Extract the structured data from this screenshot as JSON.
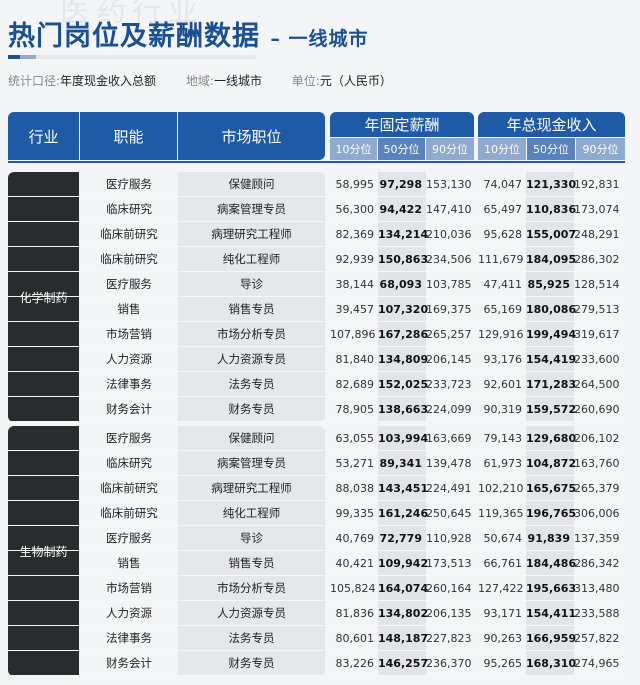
{
  "watermark": "医药行业",
  "title": "热门岗位及薪酬数据",
  "subtitle": "– 一线城市",
  "meta": {
    "scope_label": "统计口径:",
    "scope": "年度现金收入总额",
    "region_label": "地域:",
    "region": "一线城市",
    "unit_label": "单位:",
    "unit": "元（人民币）"
  },
  "headers": {
    "industry": "行业",
    "function": "职能",
    "position": "市场职位",
    "fixed": "年固定薪酬",
    "total": "年总现金收入",
    "p10": "10分位",
    "p50": "50分位",
    "p90": "90分位"
  },
  "colors": {
    "header": "#1f5aa6",
    "industry_cell": "#2a2b2d",
    "title": "#1b4f93"
  },
  "groups": [
    {
      "industry": "化学制药",
      "rows": [
        [
          "医疗服务",
          "保健顾问",
          "58,995",
          "97,298",
          "153,130",
          "74,047",
          "121,330",
          "192,831"
        ],
        [
          "临床研究",
          "病案管理专员",
          "56,300",
          "94,422",
          "147,410",
          "65,497",
          "110,836",
          "173,074"
        ],
        [
          "临床前研究",
          "病理研究工程师",
          "82,369",
          "134,214",
          "210,036",
          "95,628",
          "155,007",
          "248,291"
        ],
        [
          "临床前研究",
          "纯化工程师",
          "92,939",
          "150,863",
          "234,506",
          "111,679",
          "184,095",
          "286,302"
        ],
        [
          "医疗服务",
          "导诊",
          "38,144",
          "68,093",
          "103,785",
          "47,411",
          "85,925",
          "128,514"
        ],
        [
          "销售",
          "销售专员",
          "39,457",
          "107,320",
          "169,375",
          "65,169",
          "180,086",
          "279,513"
        ],
        [
          "市场营销",
          "市场分析专员",
          "107,896",
          "167,286",
          "265,257",
          "129,916",
          "199,494",
          "319,617"
        ],
        [
          "人力资源",
          "人力资源专员",
          "81,840",
          "134,809",
          "206,145",
          "93,176",
          "154,419",
          "233,600"
        ],
        [
          "法律事务",
          "法务专员",
          "82,689",
          "152,025",
          "233,723",
          "92,601",
          "171,283",
          "264,500"
        ],
        [
          "财务会计",
          "财务专员",
          "78,905",
          "138,663",
          "224,099",
          "90,319",
          "159,572",
          "260,690"
        ]
      ]
    },
    {
      "industry": "生物制药",
      "rows": [
        [
          "医疗服务",
          "保健顾问",
          "63,055",
          "103,994",
          "163,669",
          "79,143",
          "129,680",
          "206,102"
        ],
        [
          "临床研究",
          "病案管理专员",
          "53,271",
          "89,341",
          "139,478",
          "61,973",
          "104,872",
          "163,760"
        ],
        [
          "临床前研究",
          "病理研究工程师",
          "88,038",
          "143,451",
          "224,491",
          "102,210",
          "165,675",
          "265,379"
        ],
        [
          "临床前研究",
          "纯化工程师",
          "99,335",
          "161,246",
          "250,645",
          "119,365",
          "196,765",
          "306,006"
        ],
        [
          "医疗服务",
          "导诊",
          "40,769",
          "72,779",
          "110,928",
          "50,674",
          "91,839",
          "137,359"
        ],
        [
          "销售",
          "销售专员",
          "40,421",
          "109,942",
          "173,513",
          "66,761",
          "184,486",
          "286,342"
        ],
        [
          "市场营销",
          "市场分析专员",
          "105,824",
          "164,074",
          "260,164",
          "127,422",
          "195,663",
          "313,480"
        ],
        [
          "人力资源",
          "人力资源专员",
          "81,836",
          "134,802",
          "206,135",
          "93,171",
          "154,411",
          "233,588"
        ],
        [
          "法律事务",
          "法务专员",
          "80,601",
          "148,187",
          "227,823",
          "90,263",
          "166,959",
          "257,822"
        ],
        [
          "财务会计",
          "财务专员",
          "83,226",
          "146,257",
          "236,370",
          "95,265",
          "168,310",
          "274,965"
        ]
      ]
    }
  ]
}
